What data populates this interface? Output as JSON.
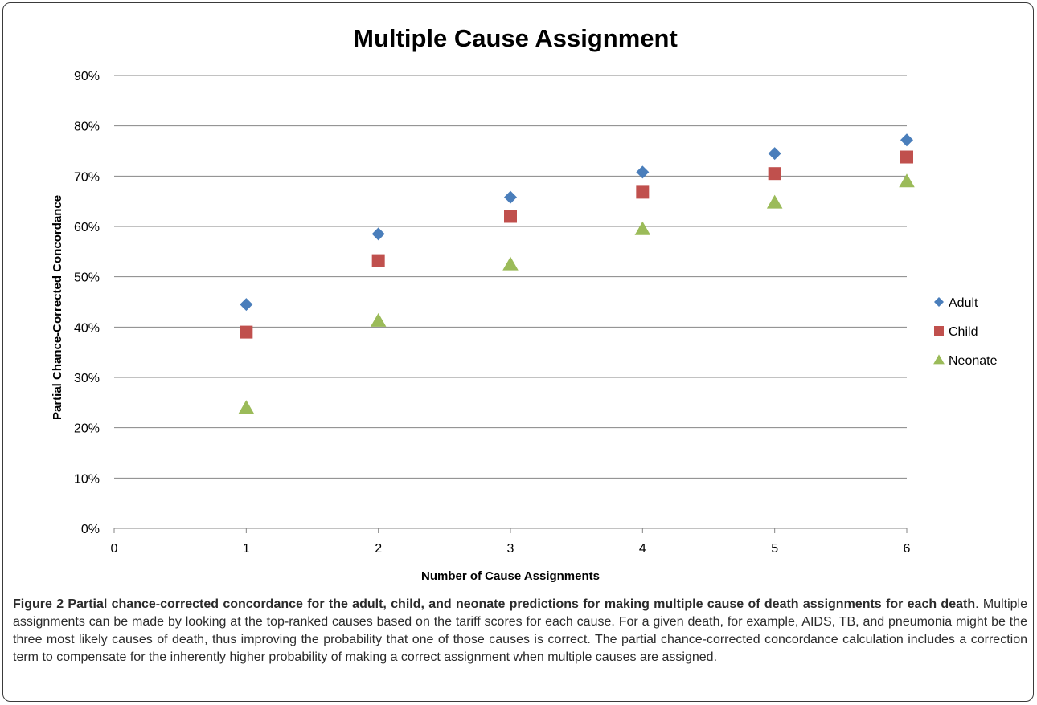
{
  "chart_data": {
    "type": "scatter",
    "title": "Multiple Cause Assignment",
    "xlabel": "Number of Cause Assignments",
    "ylabel": "Partial Chance-Corrected Concordance",
    "xlim": [
      0,
      6
    ],
    "ylim": [
      0,
      90
    ],
    "x_ticks": [
      "0",
      "1",
      "2",
      "3",
      "4",
      "5",
      "6"
    ],
    "y_ticks": [
      "0%",
      "10%",
      "20%",
      "30%",
      "40%",
      "50%",
      "60%",
      "70%",
      "80%",
      "90%"
    ],
    "grid": "horizontal",
    "legend_position": "right",
    "x": [
      1,
      2,
      3,
      4,
      5,
      6
    ],
    "series": [
      {
        "name": "Adult",
        "marker": "diamond",
        "color": "#4a7ebb",
        "values": [
          44.5,
          58.5,
          65.8,
          70.8,
          74.5,
          77.2
        ]
      },
      {
        "name": "Child",
        "marker": "square",
        "color": "#c0504d",
        "values": [
          39.0,
          53.2,
          62.0,
          66.8,
          70.5,
          73.8
        ]
      },
      {
        "name": "Neonate",
        "marker": "triangle",
        "color": "#9bbb59",
        "values": [
          24.0,
          41.3,
          52.5,
          59.5,
          64.8,
          69.0
        ]
      }
    ]
  },
  "caption": {
    "lead": "Figure 2 Partial chance-corrected concordance for the adult, child, and neonate predictions for making multiple cause of death assignments for each death",
    "body": ". Multiple assignments can be made by looking at the top-ranked causes based on the tariff scores for each cause. For a given death, for example, AIDS, TB, and pneumonia might be the three most likely causes of death, thus improving the probability that one of those causes is correct. The partial chance-corrected concordance calculation includes a correction term to compensate for the inherently higher probability of making a correct assignment when multiple causes are assigned."
  }
}
